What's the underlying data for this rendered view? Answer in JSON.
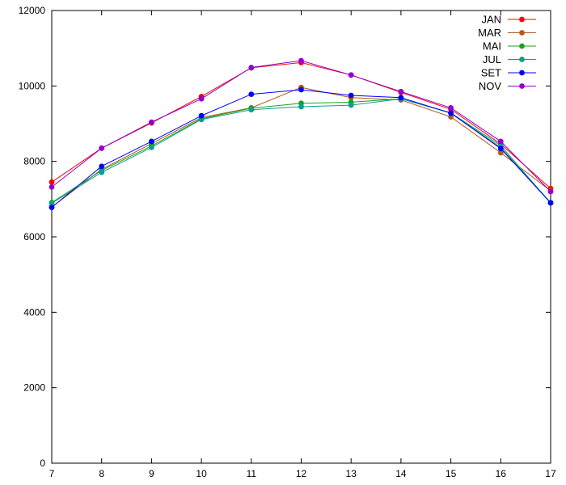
{
  "chart_data": {
    "type": "line",
    "title": "",
    "xlabel": "",
    "ylabel": "",
    "x": [
      7,
      8,
      9,
      10,
      11,
      12,
      13,
      14,
      15,
      16,
      17
    ],
    "xlim": [
      7,
      17
    ],
    "ylim": [
      0,
      12000
    ],
    "x_ticks": [
      "7",
      "8",
      "9",
      "10",
      "11",
      "12",
      "13",
      "14",
      "15",
      "16",
      "17"
    ],
    "y_ticks": [
      "0",
      "2000",
      "4000",
      "6000",
      "8000",
      "10000",
      "12000"
    ],
    "grid": false,
    "legend_position": "top-right",
    "series": [
      {
        "name": "JAN",
        "color": "#ff0000",
        "values": [
          7450,
          8350,
          9020,
          9720,
          10480,
          10620,
          10290,
          9830,
          9380,
          8460,
          7280
        ]
      },
      {
        "name": "MAR",
        "color": "#b35a1f",
        "values": [
          6790,
          7790,
          8470,
          9160,
          9420,
          9960,
          9690,
          9630,
          9180,
          8230,
          7220
        ]
      },
      {
        "name": "MAI",
        "color": "#1aa31a",
        "values": [
          6910,
          7760,
          8410,
          9130,
          9410,
          9540,
          9570,
          9660,
          9280,
          8370,
          6910
        ]
      },
      {
        "name": "JUL",
        "color": "#0b9e92",
        "values": [
          6890,
          7710,
          8370,
          9110,
          9370,
          9450,
          9490,
          9660,
          9290,
          8420,
          6900
        ]
      },
      {
        "name": "SET",
        "color": "#0000ff",
        "values": [
          6780,
          7870,
          8530,
          9210,
          9780,
          9900,
          9750,
          9690,
          9280,
          8340,
          6900
        ]
      },
      {
        "name": "NOV",
        "color": "#9400d3",
        "values": [
          7320,
          8350,
          9040,
          9660,
          10490,
          10670,
          10290,
          9850,
          9420,
          8530,
          7200
        ]
      }
    ]
  }
}
